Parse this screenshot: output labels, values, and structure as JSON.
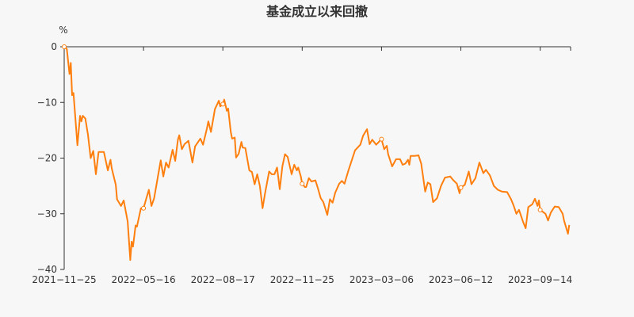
{
  "chart_data": {
    "type": "line",
    "title": "基金成立以来回撤",
    "ylabel": "%",
    "ylim": [
      -40,
      0
    ],
    "yticks": [
      0,
      -10,
      -20,
      -30,
      -40
    ],
    "xlabel": "",
    "xticks": [
      "2021-11-25",
      "2022-05-16",
      "2022-08-17",
      "2022-11-25",
      "2023-03-06",
      "2023-06-12",
      "2023-09-14"
    ],
    "xtick_index_step": 60,
    "x_max_index": 383,
    "grid": false,
    "legend": "none",
    "line_color": "#ff7f0e",
    "series": [
      {
        "points": [
          [
            0,
            0
          ],
          [
            2,
            -0.4
          ],
          [
            4,
            -4.9
          ],
          [
            5,
            -2.9
          ],
          [
            6,
            -8.7
          ],
          [
            7,
            -8.3
          ],
          [
            10,
            -17.7
          ],
          [
            12,
            -12.4
          ],
          [
            13,
            -13.4
          ],
          [
            14,
            -12.4
          ],
          [
            16,
            -12.9
          ],
          [
            18,
            -15.8
          ],
          [
            20,
            -20
          ],
          [
            22,
            -18.7
          ],
          [
            24,
            -22.9
          ],
          [
            26,
            -18.9
          ],
          [
            30,
            -18.9
          ],
          [
            33,
            -22.2
          ],
          [
            35,
            -20.3
          ],
          [
            36,
            -21.9
          ],
          [
            39,
            -24.8
          ],
          [
            40,
            -27.4
          ],
          [
            43,
            -28.6
          ],
          [
            45,
            -27.6
          ],
          [
            48,
            -31.4
          ],
          [
            50,
            -38.3
          ],
          [
            51,
            -35
          ],
          [
            52,
            -35.9
          ],
          [
            54,
            -32.1
          ],
          [
            55,
            -32.3
          ],
          [
            58,
            -29
          ],
          [
            60,
            -29
          ],
          [
            64,
            -25.7
          ],
          [
            66,
            -28.6
          ],
          [
            68,
            -27.2
          ],
          [
            73,
            -20.4
          ],
          [
            75,
            -23.3
          ],
          [
            77,
            -20.8
          ],
          [
            79,
            -21.7
          ],
          [
            82,
            -18.5
          ],
          [
            84,
            -20.5
          ],
          [
            86,
            -16.7
          ],
          [
            87,
            -15.9
          ],
          [
            89,
            -18.4
          ],
          [
            91,
            -17.5
          ],
          [
            94,
            -16.9
          ],
          [
            97,
            -20.8
          ],
          [
            99,
            -17.9
          ],
          [
            103,
            -16.5
          ],
          [
            105,
            -17.6
          ],
          [
            108,
            -14.6
          ],
          [
            109,
            -13.4
          ],
          [
            111,
            -15.3
          ],
          [
            114,
            -11.2
          ],
          [
            117,
            -9.7
          ],
          [
            118,
            -10.7
          ],
          [
            120,
            -10.3
          ],
          [
            121,
            -9.5
          ],
          [
            123,
            -11.5
          ],
          [
            124,
            -11.1
          ],
          [
            126,
            -15.3
          ],
          [
            127,
            -16.5
          ],
          [
            129,
            -16.3
          ],
          [
            130,
            -19.9
          ],
          [
            132,
            -19.2
          ],
          [
            134,
            -17.1
          ],
          [
            135,
            -18.1
          ],
          [
            137,
            -18.2
          ],
          [
            140,
            -22.2
          ],
          [
            142,
            -22.5
          ],
          [
            144,
            -24.7
          ],
          [
            146,
            -22.9
          ],
          [
            148,
            -25
          ],
          [
            150,
            -29
          ],
          [
            152,
            -26.2
          ],
          [
            155,
            -22.4
          ],
          [
            157,
            -22.9
          ],
          [
            159,
            -22.9
          ],
          [
            161,
            -21.7
          ],
          [
            163,
            -25.6
          ],
          [
            165,
            -21.5
          ],
          [
            167,
            -19.3
          ],
          [
            169,
            -19.8
          ],
          [
            172,
            -22.9
          ],
          [
            174,
            -21.2
          ],
          [
            176,
            -22.2
          ],
          [
            177,
            -21.7
          ],
          [
            179,
            -23.3
          ],
          [
            180,
            -24.6
          ],
          [
            182,
            -25.2
          ],
          [
            183,
            -25.2
          ],
          [
            185,
            -23.6
          ],
          [
            187,
            -24.2
          ],
          [
            190,
            -24
          ],
          [
            192,
            -25.5
          ],
          [
            194,
            -27.2
          ],
          [
            196,
            -27.9
          ],
          [
            199,
            -30.2
          ],
          [
            201,
            -27.4
          ],
          [
            203,
            -28
          ],
          [
            205,
            -26.2
          ],
          [
            208,
            -24.6
          ],
          [
            210,
            -24.1
          ],
          [
            212,
            -24.6
          ],
          [
            215,
            -22.2
          ],
          [
            220,
            -18.6
          ],
          [
            224,
            -17.6
          ],
          [
            226,
            -16
          ],
          [
            229,
            -14.8
          ],
          [
            231,
            -17.5
          ],
          [
            233,
            -16.7
          ],
          [
            236,
            -17.6
          ],
          [
            238,
            -17.1
          ],
          [
            240,
            -16.6
          ],
          [
            242,
            -18.4
          ],
          [
            244,
            -17.8
          ],
          [
            245,
            -19.3
          ],
          [
            248,
            -21.5
          ],
          [
            251,
            -20.2
          ],
          [
            254,
            -20.2
          ],
          [
            256,
            -21.2
          ],
          [
            258,
            -21
          ],
          [
            260,
            -20.3
          ],
          [
            261,
            -21.2
          ],
          [
            262,
            -19.6
          ],
          [
            265,
            -19.6
          ],
          [
            268,
            -19.5
          ],
          [
            270,
            -21
          ],
          [
            273,
            -26
          ],
          [
            275,
            -24.4
          ],
          [
            277,
            -24.7
          ],
          [
            279,
            -27.9
          ],
          [
            282,
            -27.2
          ],
          [
            285,
            -25
          ],
          [
            288,
            -23.5
          ],
          [
            292,
            -23.3
          ],
          [
            294,
            -23.9
          ],
          [
            297,
            -24.6
          ],
          [
            299,
            -26.3
          ],
          [
            300,
            -25.3
          ],
          [
            303,
            -24.8
          ],
          [
            306,
            -22.4
          ],
          [
            308,
            -24.7
          ],
          [
            311,
            -23.6
          ],
          [
            314,
            -20.8
          ],
          [
            317,
            -22.7
          ],
          [
            319,
            -22.1
          ],
          [
            322,
            -23.1
          ],
          [
            325,
            -25
          ],
          [
            328,
            -25.7
          ],
          [
            331,
            -26
          ],
          [
            335,
            -26.1
          ],
          [
            338,
            -27.4
          ],
          [
            340,
            -28.6
          ],
          [
            342,
            -30
          ],
          [
            344,
            -29.3
          ],
          [
            347,
            -31.4
          ],
          [
            349,
            -32.6
          ],
          [
            351,
            -28.8
          ],
          [
            354,
            -28.3
          ],
          [
            356,
            -27.3
          ],
          [
            358,
            -28.6
          ],
          [
            359,
            -27.6
          ],
          [
            360,
            -29.3
          ],
          [
            364,
            -30
          ],
          [
            366,
            -31.2
          ],
          [
            368,
            -29.8
          ],
          [
            371,
            -28.7
          ],
          [
            374,
            -28.8
          ],
          [
            377,
            -30
          ],
          [
            378,
            -31.2
          ],
          [
            381,
            -33.6
          ],
          [
            382,
            -32
          ]
        ]
      }
    ]
  }
}
